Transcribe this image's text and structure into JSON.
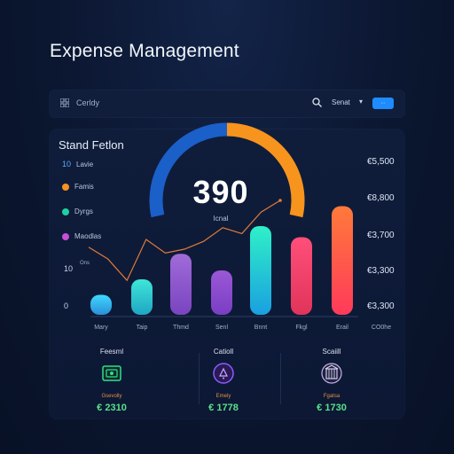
{
  "page": {
    "title": "Expense Management"
  },
  "toolbar": {
    "grid_icon": "grid-icon",
    "label": "Cerldy",
    "search_icon": "search-icon",
    "filter_label": "Senat",
    "filter_chevron": "▾",
    "action_label": "··"
  },
  "main": {
    "section_title": "Stand Fetlon",
    "legend": [
      {
        "num": "10",
        "label": "Lavie",
        "color": ""
      },
      {
        "num": "",
        "label": "Famis",
        "color": "#f7931e"
      },
      {
        "num": "",
        "label": "Dyrgs",
        "color": "#1fd1a0"
      },
      {
        "num": "",
        "label": "Maodlas",
        "color": "#c84fd8"
      }
    ],
    "y_left": [
      "10",
      "0"
    ],
    "y_right": [
      "€5,500",
      "€8,800",
      "€3,700",
      "€3,300",
      "€3,300"
    ],
    "gauge": {
      "value": "390",
      "label": "Icnal",
      "fraction": 0.62
    },
    "line_label": "Ons",
    "colors": {
      "gauge_blue": "#1b5fc9",
      "gauge_orange": "#f7941d",
      "line": "#e07b39"
    }
  },
  "chart_data": {
    "type": "bar",
    "categories": [
      "Mary",
      "Taip",
      "Thmd",
      "Senl",
      "Bnnt",
      "Fkgl",
      "Erail"
    ],
    "values": [
      18,
      32,
      55,
      40,
      80,
      70,
      98
    ],
    "ylim": [
      0,
      100
    ],
    "bar_colors": [
      [
        "#3fd8ff",
        "#2a8fd8"
      ],
      [
        "#3ee6d8",
        "#1fa6c4"
      ],
      [
        "#a06bd8",
        "#7a44c0"
      ],
      [
        "#9a58d6",
        "#7a3ec4"
      ],
      [
        "#2ff0c8",
        "#1aa0e0"
      ],
      [
        "#ff4f7a",
        "#e0345a"
      ],
      [
        "#ff7a3a",
        "#ff3a5a"
      ]
    ],
    "line": [
      52,
      40,
      18,
      60,
      46,
      50,
      58,
      72,
      66,
      88,
      100
    ],
    "xlabel": "",
    "ylabel": "",
    "right_axis_label": "CO0he"
  },
  "summary": [
    {
      "title": "Feesml",
      "sub": "Gsevolly",
      "amount": "€ 2310",
      "icon": "money-icon",
      "color": "#2ee08a"
    },
    {
      "title": "Catioll",
      "sub": "Emely",
      "amount": "€ 1778",
      "icon": "alert-icon",
      "color": "#8b5cff"
    },
    {
      "title": "Scaiill",
      "sub": "Fgatsa",
      "amount": "€ 1730",
      "icon": "building-icon",
      "color": "#c7b0e8"
    }
  ]
}
